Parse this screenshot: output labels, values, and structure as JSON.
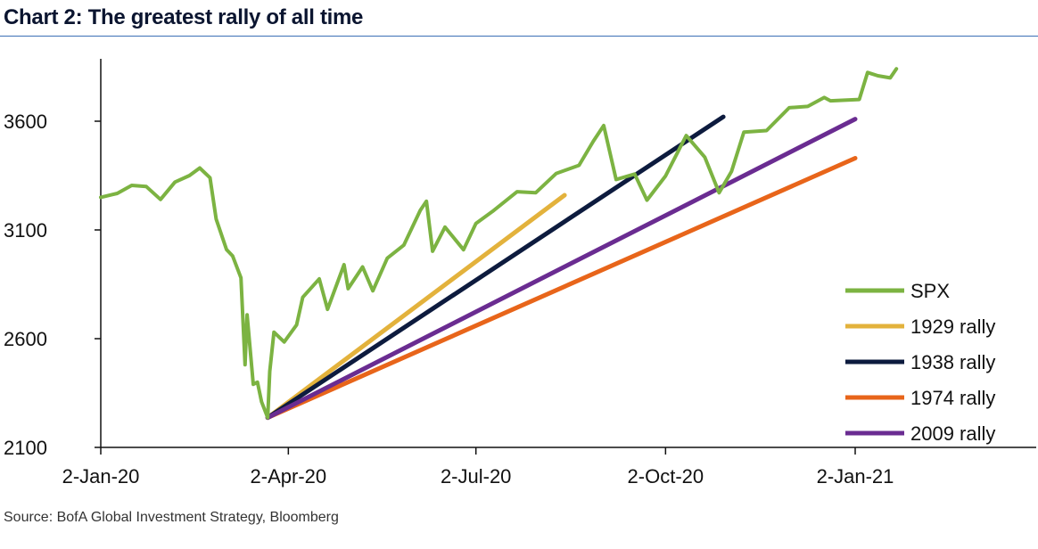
{
  "title": "Chart 2: The greatest rally of all time",
  "source": "Source: BofA Global Investment Strategy, Bloomberg",
  "chart_data": {
    "type": "line",
    "xlabel": "",
    "ylabel": "",
    "ylim": [
      2100,
      3850
    ],
    "y_ticks": [
      2100,
      2600,
      3100,
      3600
    ],
    "x_ticks": [
      "2-Jan-20",
      "2-Apr-20",
      "2-Jul-20",
      "2-Oct-20",
      "2-Jan-21"
    ],
    "x_range": [
      "2020-01-02",
      "2021-01-22"
    ],
    "grid": false,
    "legend_position": "bottom-right",
    "series": [
      {
        "name": "SPX",
        "color": "#7cb342",
        "points": [
          [
            "2020-01-02",
            3250
          ],
          [
            "2020-01-10",
            3268
          ],
          [
            "2020-01-17",
            3305
          ],
          [
            "2020-01-24",
            3300
          ],
          [
            "2020-01-31",
            3240
          ],
          [
            "2020-02-07",
            3320
          ],
          [
            "2020-02-14",
            3350
          ],
          [
            "2020-02-19",
            3385
          ],
          [
            "2020-02-24",
            3340
          ],
          [
            "2020-02-27",
            3150
          ],
          [
            "2020-03-03",
            3010
          ],
          [
            "2020-03-06",
            2980
          ],
          [
            "2020-03-10",
            2880
          ],
          [
            "2020-03-12",
            2480
          ],
          [
            "2020-03-13",
            2710
          ],
          [
            "2020-03-16",
            2390
          ],
          [
            "2020-03-18",
            2400
          ],
          [
            "2020-03-20",
            2310
          ],
          [
            "2020-03-23",
            2237
          ],
          [
            "2020-03-24",
            2450
          ],
          [
            "2020-03-26",
            2630
          ],
          [
            "2020-03-31",
            2585
          ],
          [
            "2020-04-06",
            2663
          ],
          [
            "2020-04-09",
            2790
          ],
          [
            "2020-04-17",
            2875
          ],
          [
            "2020-04-21",
            2735
          ],
          [
            "2020-04-29",
            2940
          ],
          [
            "2020-05-01",
            2830
          ],
          [
            "2020-05-08",
            2930
          ],
          [
            "2020-05-13",
            2820
          ],
          [
            "2020-05-20",
            2970
          ],
          [
            "2020-05-28",
            3030
          ],
          [
            "2020-06-05",
            3190
          ],
          [
            "2020-06-08",
            3232
          ],
          [
            "2020-06-11",
            3002
          ],
          [
            "2020-06-17",
            3113
          ],
          [
            "2020-06-26",
            3009
          ],
          [
            "2020-07-02",
            3130
          ],
          [
            "2020-07-10",
            3185
          ],
          [
            "2020-07-22",
            3276
          ],
          [
            "2020-07-31",
            3271
          ],
          [
            "2020-08-10",
            3360
          ],
          [
            "2020-08-21",
            3397
          ],
          [
            "2020-08-28",
            3508
          ],
          [
            "2020-09-02",
            3580
          ],
          [
            "2020-09-08",
            3332
          ],
          [
            "2020-09-17",
            3357
          ],
          [
            "2020-09-23",
            3237
          ],
          [
            "2020-10-02",
            3348
          ],
          [
            "2020-10-12",
            3534
          ],
          [
            "2020-10-21",
            3435
          ],
          [
            "2020-10-28",
            3271
          ],
          [
            "2020-11-03",
            3369
          ],
          [
            "2020-11-09",
            3550
          ],
          [
            "2020-11-20",
            3557
          ],
          [
            "2020-12-01",
            3662
          ],
          [
            "2020-12-10",
            3668
          ],
          [
            "2020-12-18",
            3709
          ],
          [
            "2020-12-21",
            3694
          ],
          [
            "2021-01-04",
            3700
          ],
          [
            "2021-01-08",
            3824
          ],
          [
            "2021-01-13",
            3809
          ],
          [
            "2021-01-19",
            3799
          ],
          [
            "2021-01-22",
            3841
          ]
        ]
      },
      {
        "name": "1929 rally",
        "color": "#e3b23c",
        "points": [
          [
            "2020-03-23",
            2237
          ],
          [
            "2020-08-14",
            3260
          ]
        ]
      },
      {
        "name": "1938 rally",
        "color": "#0d1b3e",
        "points": [
          [
            "2020-03-23",
            2237
          ],
          [
            "2020-10-30",
            3620
          ]
        ]
      },
      {
        "name": "1974 rally",
        "color": "#e8651a",
        "points": [
          [
            "2020-03-23",
            2237
          ],
          [
            "2021-01-02",
            3430
          ]
        ]
      },
      {
        "name": "2009 rally",
        "color": "#6a2c91",
        "points": [
          [
            "2020-03-23",
            2237
          ],
          [
            "2021-01-02",
            3610
          ]
        ]
      }
    ]
  }
}
